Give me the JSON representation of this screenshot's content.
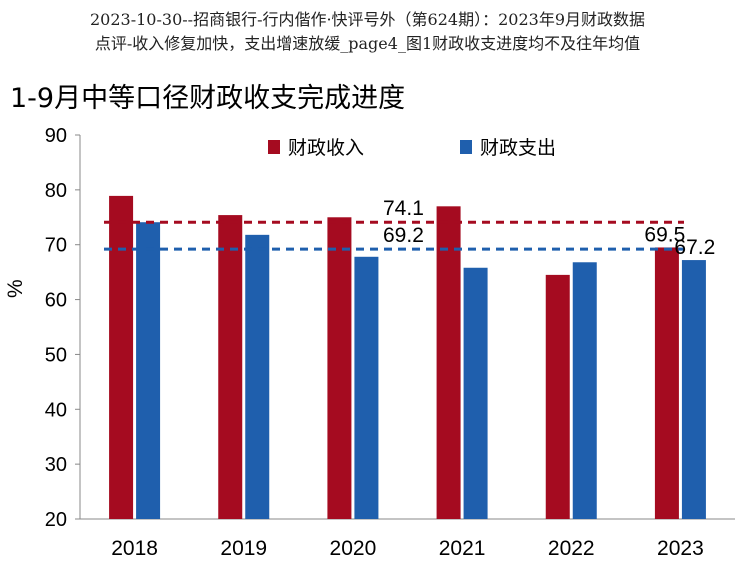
{
  "header": {
    "line1": "2023-10-30--招商银行-行内偕作·快评号外（第624期）：2023年9月财政数据",
    "line2": "点评-收入修复加快，支出增速放缓_page4_图1财政收支进度均不及往年均值"
  },
  "chart_data": {
    "type": "bar",
    "title": "1-9月中等口径财政收支完成进度",
    "ylabel": "%",
    "xlabel": "",
    "ylim": [
      20,
      90
    ],
    "yticks": [
      20,
      30,
      40,
      50,
      60,
      70,
      80,
      90
    ],
    "categories": [
      "2018",
      "2019",
      "2020",
      "2021",
      "2022",
      "2023"
    ],
    "series": [
      {
        "name": "财政收入",
        "color": "#a50b20",
        "values": [
          78.9,
          75.4,
          75.0,
          77.0,
          64.5,
          69.5
        ]
      },
      {
        "name": "财政支出",
        "color": "#1f5fad",
        "values": [
          74.1,
          71.8,
          67.8,
          65.8,
          66.8,
          67.2
        ]
      }
    ],
    "reference_lines": [
      {
        "value": 74.1,
        "label": "74.1",
        "color": "#a50b20"
      },
      {
        "value": 69.2,
        "label": "69.2",
        "color": "#1f5fad"
      }
    ],
    "data_labels": [
      {
        "category": "2023",
        "series": 0,
        "label": "69.5"
      },
      {
        "category": "2023",
        "series": 1,
        "label": "67.2"
      }
    ],
    "legend_position": "top",
    "grid": false
  }
}
